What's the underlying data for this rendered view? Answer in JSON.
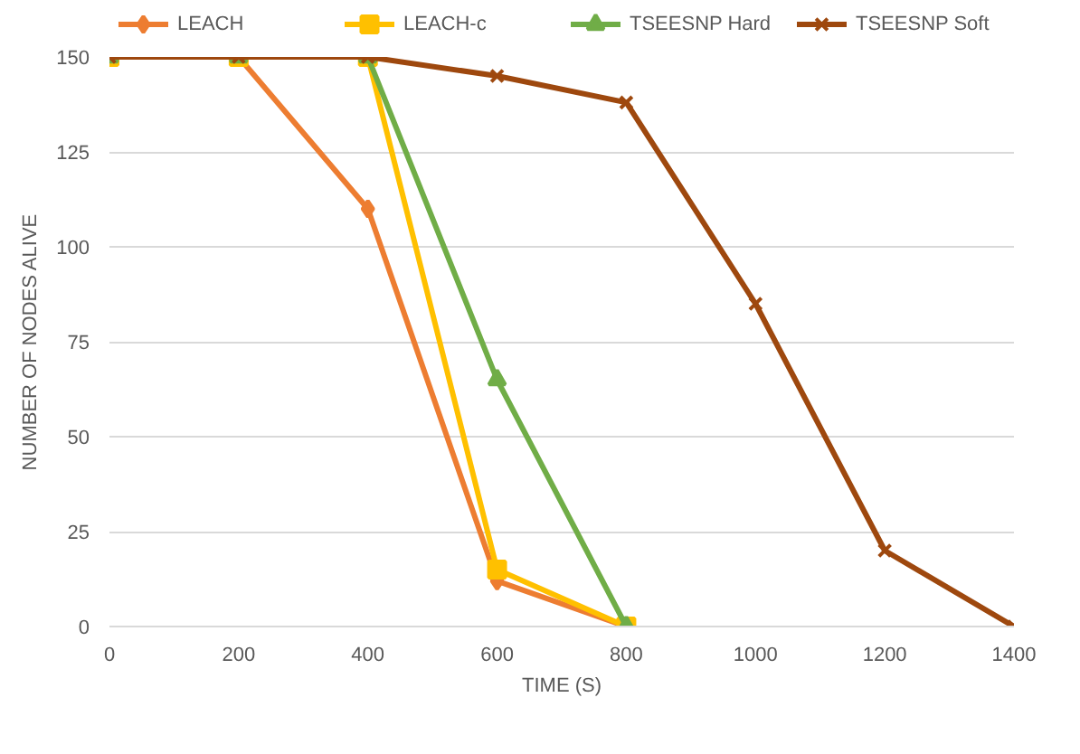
{
  "chart_data": {
    "type": "line",
    "xlabel": "TIME (S)",
    "ylabel": "NUMBER OF NODES ALIVE",
    "xlim": [
      0,
      1400
    ],
    "ylim": [
      0,
      150
    ],
    "xticks": [
      0,
      200,
      400,
      600,
      800,
      1000,
      1200,
      1400
    ],
    "yticks": [
      0,
      25,
      50,
      75,
      100,
      125,
      150
    ],
    "grid": "y",
    "legend": "top",
    "line_style": "solid",
    "series": [
      {
        "name": "LEACH",
        "color": "#ed7d31",
        "marker": "diamond",
        "x": [
          0,
          200,
          400,
          600,
          800
        ],
        "values": [
          150,
          150,
          110,
          12,
          0
        ]
      },
      {
        "name": "LEACH-c",
        "color": "#ffc000",
        "marker": "square",
        "x": [
          0,
          200,
          400,
          600,
          800
        ],
        "values": [
          150,
          150,
          150,
          15,
          0
        ]
      },
      {
        "name": "TSEESNP Hard",
        "color": "#70ad47",
        "marker": "triangle",
        "x": [
          0,
          200,
          400,
          600,
          800
        ],
        "values": [
          150,
          150,
          150,
          65,
          0
        ]
      },
      {
        "name": "TSEESNP Soft",
        "color": "#9e480e",
        "marker": "cross",
        "x": [
          0,
          200,
          400,
          600,
          800,
          1000,
          1200,
          1400
        ],
        "values": [
          150,
          150,
          150,
          145,
          138,
          85,
          20,
          0
        ]
      }
    ]
  }
}
